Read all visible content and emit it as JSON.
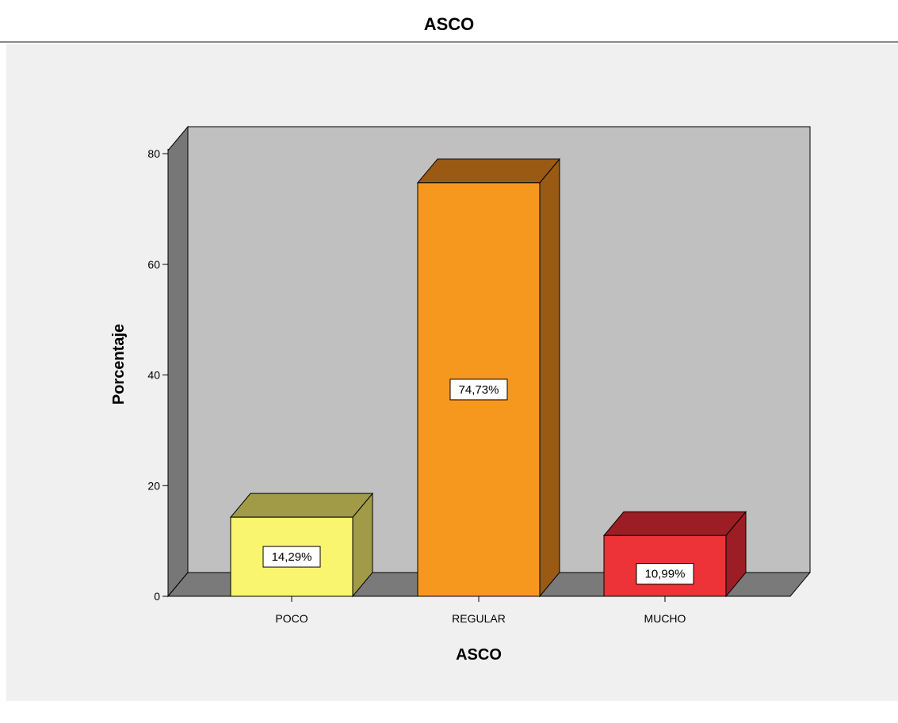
{
  "chart_data": {
    "type": "bar",
    "title": "ASCO",
    "xlabel": "ASCO",
    "ylabel": "Porcentaje",
    "categories": [
      "POCO",
      "REGULAR",
      "MUCHO"
    ],
    "values": [
      14.29,
      74.73,
      10.99
    ],
    "data_labels": [
      "14,29%",
      "74,73%",
      "10,99%"
    ],
    "ylim": [
      0,
      80
    ],
    "yticks": [
      0,
      20,
      40,
      60,
      80
    ],
    "colors": {
      "front": [
        "#faf56e",
        "#f7981e",
        "#ed3238"
      ],
      "top": [
        "#a19a47",
        "#9a5a14",
        "#9c1e24"
      ],
      "side": [
        "#a19a47",
        "#9a5a14",
        "#9c1e24"
      ],
      "backwall": "#c0c0c0",
      "sidewall": "#777777",
      "floor": "#7a7a7a"
    },
    "style": "3d",
    "grid": false,
    "legend": "none"
  }
}
